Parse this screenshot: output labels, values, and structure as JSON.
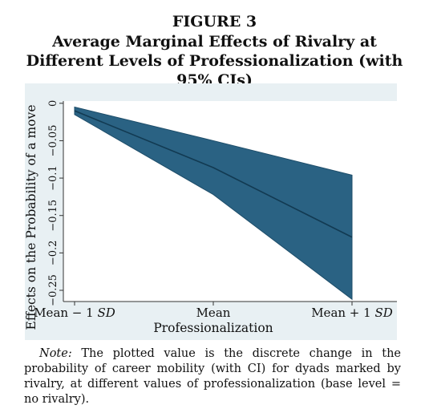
{
  "figure": {
    "label": "FIGURE 3",
    "title": "Average Marginal Effects of Rivalry at Different Levels of Professionalization (with 95% CIs)"
  },
  "note": {
    "lead": "Note:",
    "text": " The plotted value is the discrete change in the probability of career mobility (with CI) for dyads marked by rivalry, at different values of professionalization (base level = no rivalry)."
  },
  "chart_data": {
    "type": "area",
    "title": "",
    "xlabel": "Professionalization",
    "ylabel": "Effects on the Probability of a move",
    "x": [
      0,
      1,
      2
    ],
    "xticks": [
      {
        "parts": [
          {
            "text": "Mean − 1 ",
            "italic": false
          },
          {
            "text": "SD",
            "italic": true
          }
        ]
      },
      {
        "parts": [
          {
            "text": "Mean",
            "italic": false
          }
        ]
      },
      {
        "parts": [
          {
            "text": "Mean + 1 ",
            "italic": false
          },
          {
            "text": "SD",
            "italic": true
          }
        ]
      }
    ],
    "yticks": [
      0,
      -0.05,
      -0.1,
      -0.15,
      -0.2,
      -0.25
    ],
    "ytick_labels": [
      "0",
      "−0.05",
      "−0.1",
      "−0.15",
      "−0.2",
      "−0.25"
    ],
    "ylim": [
      -0.265,
      0.003
    ],
    "series": [
      {
        "role": "estimate",
        "values": [
          -0.01,
          -0.086,
          -0.179
        ]
      },
      {
        "role": "ci_upper",
        "values": [
          -0.005,
          -0.05,
          -0.096
        ]
      },
      {
        "role": "ci_lower",
        "values": [
          -0.015,
          -0.122,
          -0.262
        ]
      }
    ],
    "grid": false,
    "legend": "none",
    "colors": {
      "background": "#e8f0f3",
      "plot_area": "#ffffff",
      "band": "#2a6283",
      "line": "#123a52"
    }
  }
}
